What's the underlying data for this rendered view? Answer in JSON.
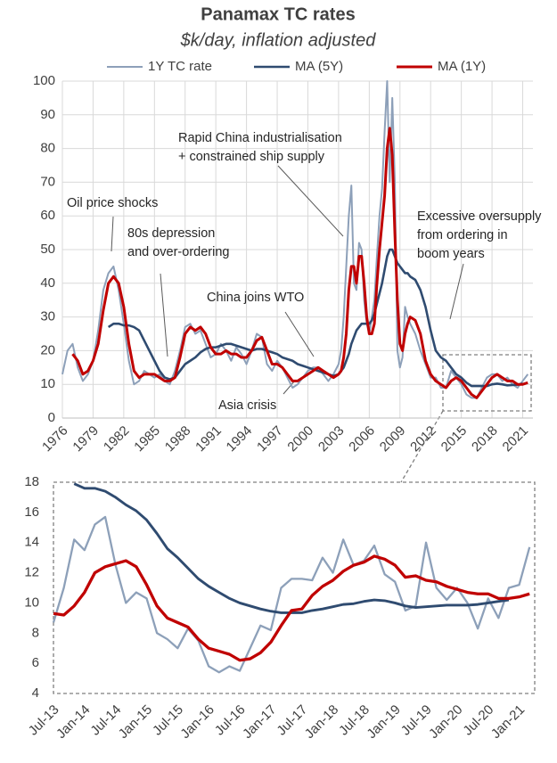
{
  "chart_data": [
    {
      "type": "line",
      "title": "Panamax TC rates",
      "subtitle": "$k/day, inflation adjusted",
      "x": [
        1976,
        1976.5,
        1977,
        1977.5,
        1978,
        1978.5,
        1979,
        1979.5,
        1980,
        1980.5,
        1981,
        1981.5,
        1982,
        1982.5,
        1983,
        1983.5,
        1984,
        1984.5,
        1985,
        1985.5,
        1986,
        1986.5,
        1987,
        1987.5,
        1988,
        1988.5,
        1989,
        1989.5,
        1990,
        1990.5,
        1991,
        1991.5,
        1992,
        1992.5,
        1993,
        1993.5,
        1994,
        1994.5,
        1995,
        1995.5,
        1996,
        1996.5,
        1997,
        1997.5,
        1998,
        1998.5,
        1999,
        1999.5,
        2000,
        2000.5,
        2001,
        2001.5,
        2002,
        2002.5,
        2003,
        2003.25,
        2003.5,
        2003.75,
        2004,
        2004.25,
        2004.5,
        2004.75,
        2005,
        2005.25,
        2005.5,
        2005.75,
        2006,
        2006.25,
        2006.5,
        2006.75,
        2007,
        2007.25,
        2007.5,
        2007.75,
        2008,
        2008.25,
        2008.5,
        2008.75,
        2009,
        2009.25,
        2009.5,
        2009.75,
        2010,
        2010.5,
        2011,
        2011.5,
        2012,
        2012.5,
        2013,
        2013.5,
        2014,
        2014.5,
        2015,
        2015.5,
        2016,
        2016.5,
        2017,
        2017.5,
        2018,
        2018.5,
        2019,
        2019.5,
        2020,
        2020.5,
        2021,
        2021.5
      ],
      "series": [
        {
          "name": "1Y TC rate",
          "color": "#8da0b9",
          "values": [
            13,
            20,
            22,
            15,
            11,
            13,
            17,
            26,
            38,
            43,
            45,
            38,
            28,
            17,
            10,
            11,
            14,
            13,
            12,
            13,
            11,
            10,
            14,
            20,
            27,
            28,
            25,
            26,
            22,
            18,
            19,
            22,
            20,
            17,
            21,
            19,
            16,
            20,
            25,
            24,
            16,
            14,
            17,
            15,
            12,
            9,
            10,
            12,
            14,
            15,
            15,
            13,
            11,
            13,
            16,
            20,
            30,
            45,
            60,
            69,
            40,
            38,
            52,
            50,
            35,
            28,
            25,
            30,
            35,
            48,
            60,
            68,
            85,
            100,
            70,
            95,
            70,
            20,
            15,
            18,
            33,
            30,
            28,
            25,
            20,
            16,
            12,
            12,
            9,
            9,
            14,
            12,
            10,
            7,
            6,
            6,
            9,
            12,
            13,
            13,
            11,
            12,
            10,
            9,
            11,
            13
          ]
        },
        {
          "name": "MA (5Y)",
          "color": "#2f4b70",
          "values": [
            null,
            null,
            null,
            null,
            null,
            null,
            null,
            null,
            null,
            27,
            28,
            28,
            27.5,
            27.5,
            27,
            26,
            23,
            20,
            17,
            14,
            12,
            11.5,
            12,
            14,
            16,
            17,
            18,
            19.5,
            20.5,
            21,
            21,
            21.5,
            22,
            22,
            21.5,
            21,
            20.5,
            20,
            20.5,
            20.5,
            20,
            19.5,
            19,
            18,
            17.5,
            17,
            16,
            15.5,
            15,
            14.5,
            14,
            13.5,
            13,
            12.5,
            13,
            14,
            15,
            17,
            19,
            22,
            24,
            26,
            27,
            28,
            28,
            28,
            28,
            29,
            31,
            34,
            37,
            40,
            44,
            48,
            50,
            50,
            48,
            46,
            45,
            44,
            43,
            43,
            42,
            41,
            38,
            33,
            26,
            20,
            18,
            17,
            15,
            13,
            12,
            10.5,
            9.5,
            9.5,
            9.5,
            9.5,
            10,
            10.2,
            10,
            9.7,
            9.8,
            9.9,
            10.2,
            null
          ]
        },
        {
          "name": "MA (1Y)",
          "color": "#c00000",
          "values": [
            null,
            null,
            19,
            17,
            13,
            14,
            17,
            22,
            32,
            40,
            42,
            40,
            33,
            22,
            14,
            12,
            13,
            13,
            13,
            12,
            11,
            11,
            12,
            18,
            25,
            27,
            26,
            27,
            25,
            21,
            19,
            19,
            20,
            19,
            19,
            18,
            18,
            20,
            23,
            24,
            20,
            16,
            16,
            15,
            13,
            11,
            11,
            12,
            13,
            14,
            15,
            14,
            13,
            12,
            13,
            14,
            18,
            25,
            38,
            45,
            45,
            40,
            48,
            48,
            40,
            30,
            25,
            25,
            28,
            40,
            50,
            58,
            66,
            80,
            86,
            78,
            55,
            35,
            22,
            20,
            25,
            28,
            30,
            29,
            25,
            17,
            13,
            11,
            10,
            9,
            11,
            12,
            11,
            9,
            7,
            6,
            8,
            10,
            12,
            13,
            12,
            11,
            11,
            10,
            10,
            10.5
          ]
        }
      ],
      "xlim": [
        1976,
        2022
      ],
      "xticks": [
        1976,
        1979,
        1982,
        1985,
        1988,
        1991,
        1994,
        1997,
        2000,
        2003,
        2006,
        2009,
        2012,
        2015,
        2018,
        2021
      ],
      "ylim": [
        0,
        100
      ],
      "yticks": [
        0,
        10,
        20,
        30,
        40,
        50,
        60,
        70,
        80,
        90,
        100
      ],
      "grid": true,
      "legend": "top",
      "annotations": [
        {
          "text": [
            "Oil price shocks"
          ]
        },
        {
          "text": [
            "80s depression",
            "and over-ordering"
          ]
        },
        {
          "text": [
            "China joins WTO"
          ]
        },
        {
          "text": [
            "Asia crisis"
          ]
        },
        {
          "text": [
            "Rapid China industrialisation",
            "+ constrained ship supply"
          ]
        },
        {
          "text": [
            "Excessive oversupply",
            "from ordering in",
            "boom years"
          ]
        }
      ]
    },
    {
      "type": "line",
      "categories": [
        "Jul-13",
        null,
        null,
        "Jan-14",
        null,
        null,
        "Jul-14",
        null,
        null,
        "Jan-15",
        null,
        null,
        "Jul-15",
        null,
        null,
        "Jan-16",
        null,
        null,
        "Jul-16",
        null,
        null,
        "Jan-17",
        null,
        null,
        "Jul-17",
        null,
        null,
        "Jan-18",
        null,
        null,
        "Jul-18",
        null,
        null,
        "Jan-19",
        null,
        null,
        "Jul-19",
        null,
        null,
        "Jan-20",
        null,
        null,
        "Jul-20",
        null,
        null,
        "Jan-21",
        null
      ],
      "series": [
        {
          "name": "1Y TC rate",
          "color": "#8da0b9",
          "values": [
            8.7,
            11,
            14.2,
            13.5,
            15.2,
            15.7,
            12.5,
            10,
            10.7,
            10.3,
            8,
            7.6,
            7,
            8.3,
            7.5,
            5.8,
            5.4,
            5.8,
            5.5,
            7,
            8.5,
            8.2,
            11,
            11.6,
            11.6,
            11.5,
            13,
            12,
            14.2,
            12.5,
            12.8,
            13.8,
            11.9,
            11.4,
            9.5,
            9.8,
            14,
            11,
            10.2,
            11,
            10,
            8.3,
            10.3,
            9,
            11,
            11.2,
            13.7
          ]
        },
        {
          "name": "MA (5Y)",
          "color": "#2f4b70",
          "values": [
            null,
            null,
            17.9,
            17.6,
            17.6,
            17.4,
            17,
            16.5,
            16.1,
            15.5,
            14.6,
            13.6,
            13,
            12.3,
            11.6,
            11.1,
            10.7,
            10.3,
            10,
            9.8,
            9.6,
            9.45,
            9.35,
            9.35,
            9.35,
            9.5,
            9.6,
            9.75,
            9.9,
            9.95,
            10.1,
            10.2,
            10.15,
            10,
            9.8,
            9.7,
            9.75,
            9.8,
            9.85,
            9.85,
            9.85,
            9.9,
            10,
            10.1,
            10.2,
            null,
            null
          ]
        },
        {
          "name": "MA (1Y)",
          "color": "#c00000",
          "values": [
            9.3,
            9.2,
            9.8,
            10.7,
            12,
            12.4,
            12.6,
            12.8,
            12.4,
            11.2,
            9.8,
            9,
            8.7,
            8.4,
            7.6,
            7,
            6.8,
            6.6,
            6.2,
            6.3,
            6.7,
            7.4,
            8.5,
            9.5,
            9.6,
            10.5,
            11.1,
            11.5,
            12.1,
            12.5,
            12.7,
            13.1,
            12.9,
            12.5,
            11.7,
            11.8,
            11.5,
            11.4,
            11.1,
            10.9,
            10.7,
            10.6,
            10.6,
            10.3,
            10.3,
            10.4,
            10.6
          ]
        }
      ],
      "ylim": [
        4,
        18
      ],
      "yticks": [
        4,
        6,
        8,
        10,
        12,
        14,
        16,
        18
      ],
      "grid": false
    }
  ]
}
